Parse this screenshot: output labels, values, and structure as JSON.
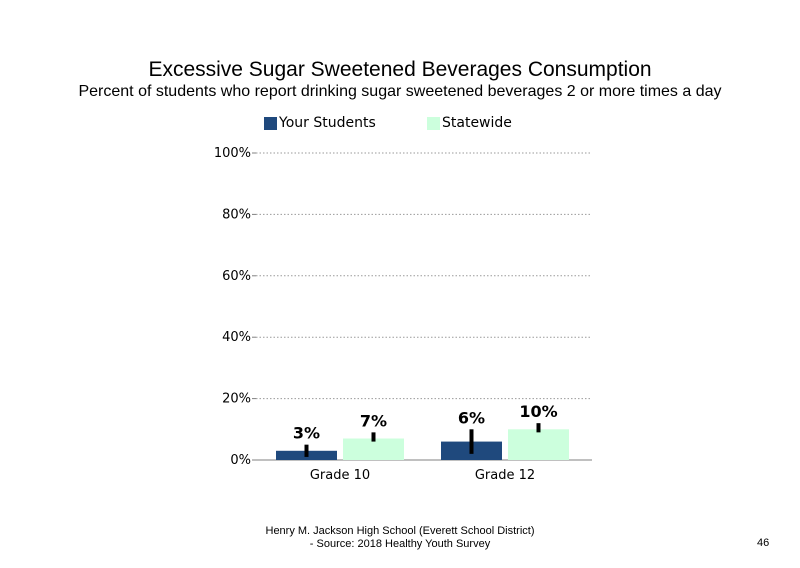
{
  "colors": {
    "your_students": "#1f497d",
    "statewide": "#ccffdd",
    "error_bar": "#000000",
    "grid": "#9a9a9a",
    "axis": "#808080"
  },
  "footer": {
    "line1": "Henry M. Jackson High School (Everett School District)",
    "line2": "- Source: 2018 Healthy Youth Survey"
  },
  "page_number": "46",
  "chart_data": {
    "type": "bar",
    "title": "Excessive Sugar Sweetened Beverages Consumption",
    "subtitle": "Percent of students who report drinking sugar sweetened beverages 2 or more times a day",
    "categories": [
      "Grade 10",
      "Grade 12"
    ],
    "series": [
      {
        "name": "Your Students",
        "values": [
          3,
          6
        ],
        "labels": [
          "3%",
          "6%"
        ],
        "error_low": [
          1,
          2
        ],
        "error_high": [
          5,
          10
        ]
      },
      {
        "name": "Statewide",
        "values": [
          7,
          10
        ],
        "labels": [
          "7%",
          "10%"
        ],
        "error_low": [
          6,
          9
        ],
        "error_high": [
          9,
          12
        ]
      }
    ],
    "yticks": [
      "0%",
      "20%",
      "40%",
      "60%",
      "80%",
      "100%"
    ],
    "ylim": [
      0,
      100
    ],
    "grid": true,
    "legend": "top"
  }
}
